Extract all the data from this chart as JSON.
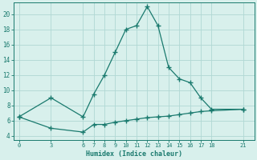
{
  "line1_x": [
    0,
    3,
    6,
    7,
    8,
    9,
    10,
    11,
    12,
    13,
    14,
    15,
    16,
    17,
    18,
    21
  ],
  "line1_y": [
    6.5,
    9.0,
    6.5,
    9.5,
    12.0,
    15.0,
    18.0,
    18.5,
    21.0,
    18.5,
    13.0,
    11.5,
    11.0,
    9.0,
    7.5,
    7.5
  ],
  "line2_x": [
    0,
    3,
    6,
    7,
    8,
    9,
    10,
    11,
    12,
    13,
    14,
    15,
    16,
    17,
    18,
    21
  ],
  "line2_y": [
    6.5,
    5.0,
    4.5,
    5.5,
    5.5,
    5.8,
    6.0,
    6.2,
    6.4,
    6.5,
    6.6,
    6.8,
    7.0,
    7.2,
    7.3,
    7.5
  ],
  "line_color": "#1a7a6e",
  "bg_color": "#d8f0ec",
  "grid_color": "#b0d8d4",
  "xlabel": "Humidex (Indice chaleur)",
  "xticks": [
    0,
    3,
    6,
    7,
    8,
    9,
    10,
    11,
    12,
    13,
    14,
    15,
    16,
    17,
    18,
    21
  ],
  "yticks": [
    4,
    6,
    8,
    10,
    12,
    14,
    16,
    18,
    20
  ],
  "ylim": [
    3.5,
    21.5
  ],
  "xlim": [
    -0.5,
    22.0
  ]
}
